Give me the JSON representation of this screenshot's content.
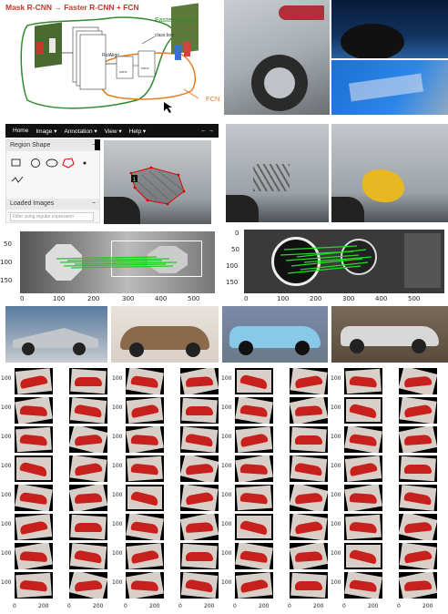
{
  "diagram": {
    "title": "Mask R-CNN → Faster R-CNN + FCN",
    "faster_label": "Faster-RCNN",
    "fcn_label": "FCN",
    "roialign_label": "RoIAlign",
    "classbox_label": "class box",
    "conv_label_1": "conv",
    "conv_label_2": "conv"
  },
  "annotator": {
    "menu": [
      "Home",
      "Image ▾",
      "Annotation ▾",
      "View ▾",
      "Help ▾"
    ],
    "arrows": "← →",
    "region_shape_title": "Region Shape",
    "loaded_images_title": "Loaded Images",
    "filter_placeholder": "Filter using regular expression",
    "minus": "−",
    "polygon_number": "1"
  },
  "match_left": {
    "yticks": [
      "50",
      "100",
      "150"
    ],
    "xticks": [
      "0",
      "100",
      "200",
      "300",
      "400",
      "500"
    ]
  },
  "match_right": {
    "yticks": [
      "0",
      "50",
      "100",
      "150"
    ],
    "xticks": [
      "0",
      "100",
      "200",
      "300",
      "400",
      "500"
    ]
  },
  "grid": {
    "ytick_100": "100",
    "xticks": [
      "0",
      "200"
    ]
  },
  "colors": {
    "accent_red": "#c0392b",
    "match_line": "#22cc22",
    "car_red": "#c8201c"
  }
}
